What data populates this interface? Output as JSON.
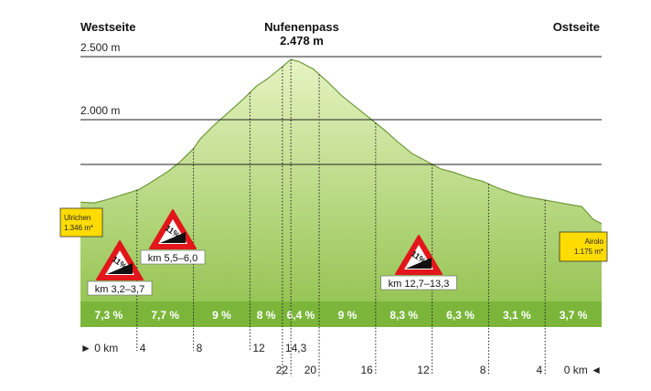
{
  "header": {
    "west_label": "Westseite",
    "east_label": "Ostseite",
    "pass_name": "Nufenenpass",
    "pass_elevation": "2.478 m"
  },
  "chart_data": {
    "type": "area",
    "title": "Nufenenpass 2.478 m",
    "elevation_gridlines": [
      "2.500 m",
      "2.000 m"
    ],
    "grid": true,
    "x_range_km": [
      0,
      36.9
    ],
    "y_range_m": [
      1000,
      2500
    ],
    "profile": {
      "km": [
        0,
        1,
        2,
        3,
        3.7,
        4.2,
        4.8,
        5.5,
        6.2,
        7,
        8,
        8.5,
        9.5,
        10.5,
        11.5,
        12.5,
        13.2,
        14.3,
        14.9,
        15.5,
        16.5,
        17.5,
        18.5,
        19.5,
        20.5,
        21.5,
        22.5,
        23.5,
        24.5,
        25.5,
        26.5,
        27.5,
        28.5,
        29.5,
        30.5,
        31.5,
        32.5,
        33.5,
        34.5,
        35.5,
        36.3,
        36.9
      ],
      "elevation": [
        1346,
        1340,
        1370,
        1405,
        1430,
        1450,
        1490,
        1540,
        1590,
        1660,
        1770,
        1850,
        1960,
        2060,
        2160,
        2270,
        2320,
        2420,
        2478,
        2460,
        2400,
        2300,
        2190,
        2100,
        2010,
        1920,
        1820,
        1730,
        1670,
        1610,
        1580,
        1540,
        1510,
        1460,
        1420,
        1390,
        1370,
        1350,
        1330,
        1310,
        1210,
        1175
      ]
    },
    "segments": [
      {
        "from_km": 0,
        "to_km": 4,
        "gradient": "7,3 %"
      },
      {
        "from_km": 4,
        "to_km": 8,
        "gradient": "7,7 %"
      },
      {
        "from_km": 8,
        "to_km": 12,
        "gradient": "9 %"
      },
      {
        "from_km": 12,
        "to_km": 14.3,
        "gradient": "8 %"
      },
      {
        "from_km": 14.3,
        "to_km": 16.9,
        "gradient": "6,4 %"
      },
      {
        "from_km": 16.9,
        "to_km": 20.9,
        "gradient": "9 %"
      },
      {
        "from_km": 20.9,
        "to_km": 24.9,
        "gradient": "8,3 %"
      },
      {
        "from_km": 24.9,
        "to_km": 28.9,
        "gradient": "6,3 %"
      },
      {
        "from_km": 28.9,
        "to_km": 32.9,
        "gradient": "3,1 %"
      },
      {
        "from_km": 32.9,
        "to_km": 36.9,
        "gradient": "3,7 %"
      }
    ],
    "ticks_west": [
      {
        "km": 0,
        "label": "► 0 km"
      },
      {
        "km": 4,
        "label": "4"
      },
      {
        "km": 8,
        "label": "8"
      },
      {
        "km": 12,
        "label": "12"
      },
      {
        "km": 14.3,
        "label": "14,3"
      }
    ],
    "ticks_east": [
      {
        "km": 14.9,
        "label": "22"
      },
      {
        "km": 16.9,
        "label": "20"
      },
      {
        "km": 20.9,
        "label": "16"
      },
      {
        "km": 24.9,
        "label": "12"
      },
      {
        "km": 28.9,
        "label": "8"
      },
      {
        "km": 32.9,
        "label": "4"
      },
      {
        "km": 36.9,
        "label": "0 km ◄"
      }
    ],
    "start_town": {
      "name": "Ulrichen",
      "elevation": "1.346 m*"
    },
    "end_town": {
      "name": "Airolo",
      "elevation": "1.175 m*"
    },
    "steep_signs": [
      {
        "km": 3.45,
        "elevation": 1250,
        "grade": "11%",
        "label": "km 3,2–3,7"
      },
      {
        "km": 6.0,
        "elevation": 1500,
        "grade": "11%",
        "label": "km 5,5–6,0"
      },
      {
        "km": 22.1,
        "elevation": 1290,
        "grade": "11%",
        "label": "km 12,7–13,3"
      }
    ],
    "colors": {
      "area_top": "#e6f3c2",
      "area_bottom": "#8fc04a",
      "gradient_band": "#7bb63b",
      "gradient_band_text": "#ffffff",
      "town_box": "#ffdc00",
      "sign_red": "#e2161b"
    }
  }
}
